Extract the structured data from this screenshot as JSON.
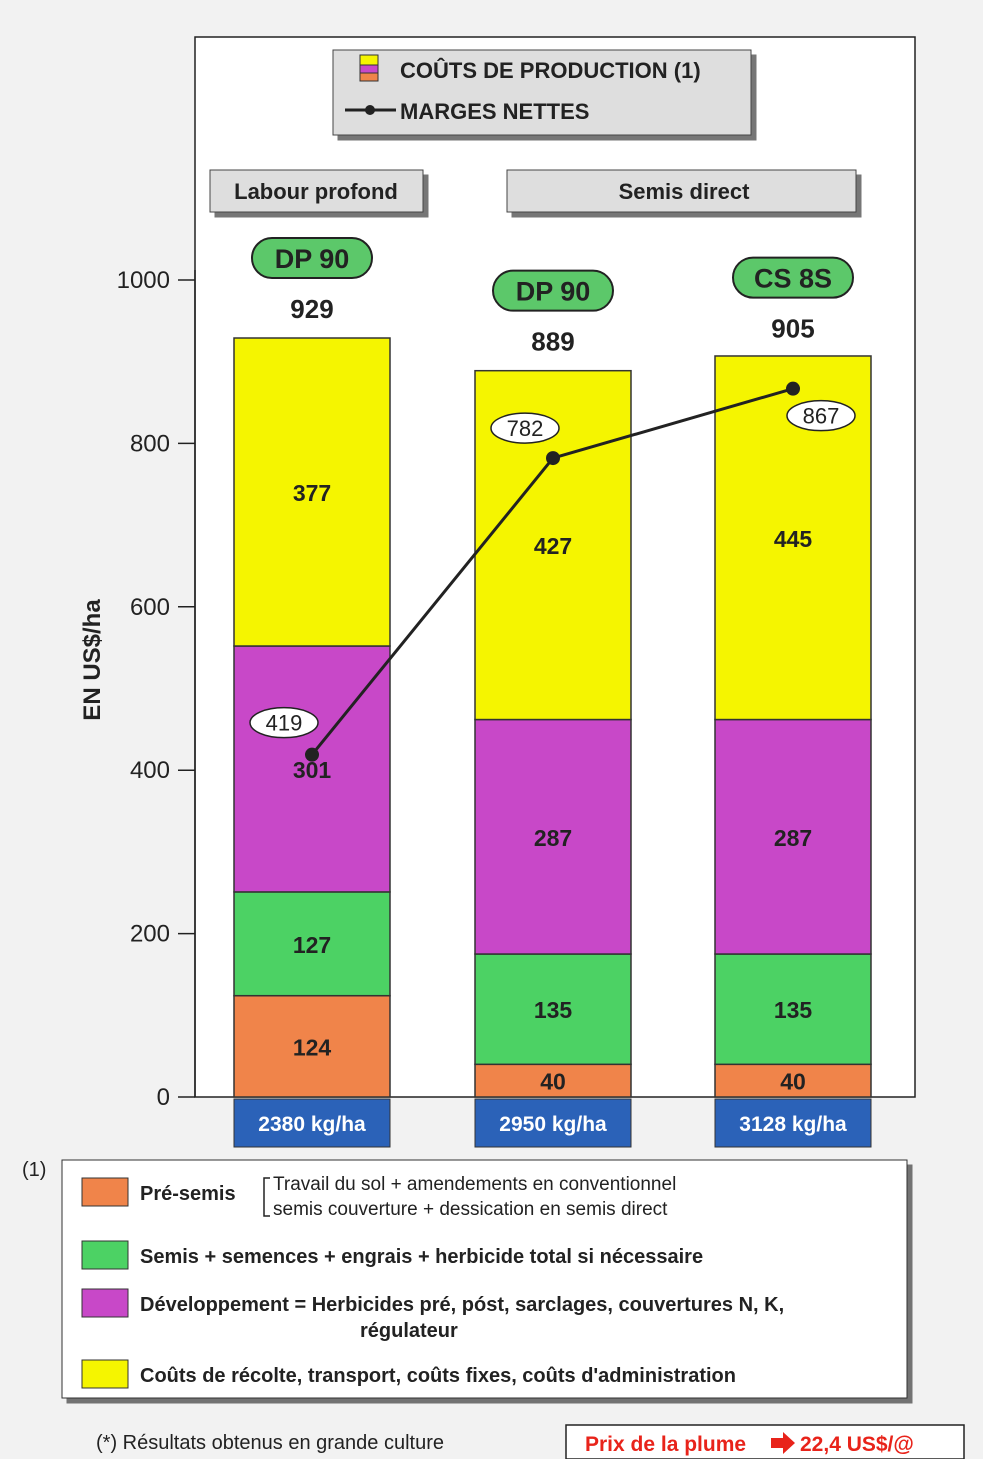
{
  "chart_data": {
    "type": "bar",
    "stacked": true,
    "ylabel": "EN US$/ha",
    "ylim": [
      0,
      1000
    ],
    "yticks": [
      0,
      200,
      400,
      600,
      800,
      1000
    ],
    "grid": false,
    "legend_top": {
      "cost_label": "COÛTS DE PRODUCTION (1)",
      "margin_label": "MARGES NETTES"
    },
    "groups": [
      {
        "label": "Labour profond",
        "bars": [
          0
        ]
      },
      {
        "label": "Semis direct",
        "bars": [
          1,
          2
        ]
      }
    ],
    "categories": [
      "DP 90",
      "DP 90",
      "CS 8S"
    ],
    "yields": [
      "2380 kg/ha",
      "2950 kg/ha",
      "3128 kg/ha"
    ],
    "totals": [
      929,
      889,
      905
    ],
    "series": [
      {
        "key": "pre_semis",
        "color": "#f0844a",
        "values": [
          124,
          40,
          40
        ]
      },
      {
        "key": "semis",
        "color": "#4cd264",
        "values": [
          127,
          135,
          135
        ]
      },
      {
        "key": "developpement",
        "color": "#c848c8",
        "values": [
          301,
          287,
          287
        ]
      },
      {
        "key": "recolte",
        "color": "#f5f500",
        "values": [
          377,
          427,
          445
        ]
      }
    ],
    "line": {
      "name": "MARGES NETTES",
      "values": [
        419,
        782,
        867
      ]
    }
  },
  "legend": {
    "marker": "(1)",
    "items": [
      {
        "color": "#f0844a",
        "label": "Pré-semis",
        "detail_line1": "Travail du sol + amendements en conventionnel",
        "detail_line2": "semis couverture + dessication en semis direct"
      },
      {
        "color": "#4cd264",
        "label": "Semis + semences + engrais + herbicide total si nécessaire"
      },
      {
        "color": "#c848c8",
        "label_line1": "Développement = Herbicides pré, póst, sarclages, couvertures N, K,",
        "label_line2": "régulateur"
      },
      {
        "color": "#f5f500",
        "label": "Coûts de récolte, transport, coûts fixes, coûts d'administration"
      }
    ]
  },
  "footnote": "(*) Résultats obtenus en grande culture",
  "price_box": {
    "prefix": "Prix de la plume",
    "value": "22,4 US$/@"
  }
}
